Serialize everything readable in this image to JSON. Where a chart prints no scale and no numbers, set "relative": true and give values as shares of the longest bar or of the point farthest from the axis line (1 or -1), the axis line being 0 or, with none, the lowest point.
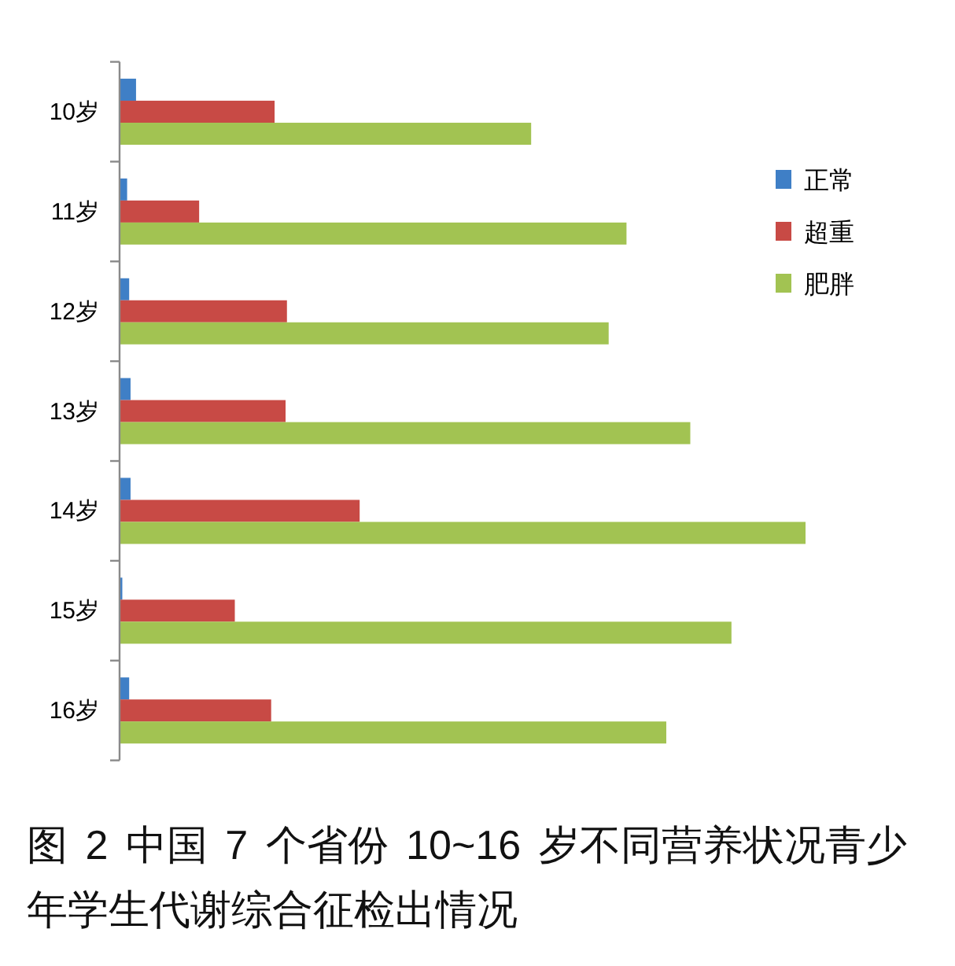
{
  "chart_data": {
    "type": "bar",
    "orientation": "horizontal",
    "relative": true,
    "title": "图 2 中国 7 个省份 10~16 岁不同营养状况青少年学生代谢综合征检出情况",
    "categories": [
      "10岁",
      "11岁",
      "12岁",
      "13岁",
      "14岁",
      "15岁",
      "16岁"
    ],
    "series": [
      {
        "name": "正常",
        "color": "#3f7fc6",
        "values": [
          0.024,
          0.011,
          0.014,
          0.016,
          0.016,
          0.004,
          0.014
        ]
      },
      {
        "name": "超重",
        "color": "#c84a45",
        "values": [
          0.226,
          0.116,
          0.244,
          0.242,
          0.35,
          0.168,
          0.221
        ]
      },
      {
        "name": "肥胖",
        "color": "#a2c352",
        "values": [
          0.6,
          0.739,
          0.713,
          0.832,
          1,
          0.892,
          0.797
        ]
      }
    ],
    "legend": "top right"
  }
}
